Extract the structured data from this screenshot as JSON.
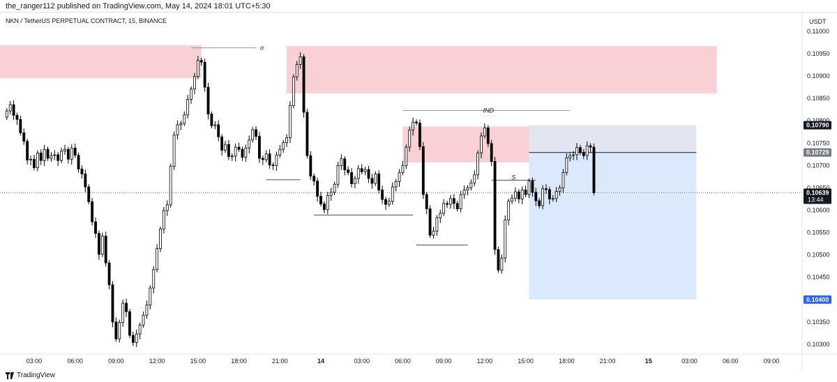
{
  "header": {
    "publisher_line": "the_ranger112 published on TradingView.com, May 14, 2024 18:01 UTC+5:30"
  },
  "symbol_line": "NKN / TetherUS PERPETUAL CONTRACT, 15, BINANCE",
  "footer": {
    "brand": "TradingView"
  },
  "colors": {
    "up_candle": "#ffffff",
    "down_candle": "#000000",
    "wick": "#000000",
    "supply_zone": "#f8c8cc",
    "target_zone": "#d4e5fb",
    "risk_zone": "#dcdff0",
    "price_badge_dark": "#131722",
    "price_badge_blue": "#2962ff",
    "price_badge_gray": "#787b86"
  },
  "chart_data": {
    "type": "candlestick",
    "price_unit": "USDT",
    "price_axis": {
      "min": 0.10278,
      "max": 0.11042,
      "ticks": [
        0.103,
        0.1035,
        0.104,
        0.1045,
        0.105,
        0.1055,
        0.106,
        0.1065,
        0.107,
        0.1075,
        0.108,
        0.1085,
        0.109,
        0.1095,
        0.11
      ],
      "tick_labels": [
        "0.10300",
        "0.10350",
        "0.10400",
        "0.10450",
        "0.10500",
        "0.10550",
        "0.10600",
        "0.10650",
        "0.10700",
        "0.10750",
        "0.10800",
        "0.10850",
        "0.10900",
        "0.10950",
        "0.11000"
      ]
    },
    "time_axis": {
      "labels": [
        "03:00",
        "06:00",
        "09:00",
        "12:00",
        "15:00",
        "18:00",
        "21:00",
        "14",
        "03:00",
        "06:00",
        "09:00",
        "12:00",
        "15:00",
        "18:00",
        "21:00",
        "15",
        "03:00",
        "06:00",
        "09:00"
      ],
      "label_bar_index": [
        8,
        20,
        32,
        44,
        56,
        68,
        80,
        92,
        104,
        116,
        128,
        140,
        152,
        164,
        176,
        188,
        200,
        212,
        224
      ],
      "bar_interval_minutes": 15,
      "bar_range": [
        -2,
        233
      ]
    },
    "candles_close": [
      0.10822,
      0.10836,
      0.10812,
      0.10803,
      0.10773,
      0.10754,
      0.10712,
      0.10714,
      0.10695,
      0.10728,
      0.10711,
      0.10736,
      0.10716,
      0.10722,
      0.10724,
      0.10711,
      0.10732,
      0.10736,
      0.10714,
      0.10739,
      0.10723,
      0.10692,
      0.10681,
      0.10652,
      0.10619,
      0.10574,
      0.10548,
      0.10501,
      0.10542,
      0.10482,
      0.10433,
      0.1035,
      0.10312,
      0.10349,
      0.10392,
      0.10373,
      0.1032,
      0.10304,
      0.10323,
      0.10343,
      0.10365,
      0.10388,
      0.10426,
      0.10467,
      0.10514,
      0.10558,
      0.10599,
      0.10612,
      0.10698,
      0.10768,
      0.10791,
      0.10794,
      0.10813,
      0.10848,
      0.10871,
      0.10899,
      0.10935,
      0.10931,
      0.10875,
      0.10815,
      0.10789,
      0.10791,
      0.10764,
      0.10734,
      0.10747,
      0.1072,
      0.10721,
      0.10741,
      0.10736,
      0.10718,
      0.10739,
      0.10757,
      0.1078,
      0.10765,
      0.10716,
      0.10713,
      0.10726,
      0.10701,
      0.107,
      0.10723,
      0.10736,
      0.10751,
      0.10762,
      0.10834,
      0.10898,
      0.10926,
      0.10943,
      0.10819,
      0.10722,
      0.10676,
      0.10665,
      0.10631,
      0.10614,
      0.10601,
      0.10633,
      0.1064,
      0.10658,
      0.107,
      0.10715,
      0.1069,
      0.10684,
      0.10659,
      0.10671,
      0.10693,
      0.10686,
      0.10691,
      0.10671,
      0.1066,
      0.10681,
      0.10645,
      0.10624,
      0.10613,
      0.1062,
      0.10652,
      0.10664,
      0.10684,
      0.107,
      0.10741,
      0.10779,
      0.10797,
      0.10795,
      0.10742,
      0.10635,
      0.10603,
      0.10544,
      0.10553,
      0.10583,
      0.10593,
      0.10615,
      0.10613,
      0.10626,
      0.10615,
      0.10603,
      0.10635,
      0.10645,
      0.1065,
      0.10661,
      0.10679,
      0.10728,
      0.10766,
      0.10784,
      0.10749,
      0.10709,
      0.10512,
      0.10466,
      0.10493,
      0.10578,
      0.1062,
      0.10627,
      0.10641,
      0.10625,
      0.10645,
      0.10635,
      0.10665,
      0.1064,
      0.10621,
      0.1061,
      0.10648,
      0.10646,
      0.10625,
      0.10626,
      0.10642,
      0.1065,
      0.10684,
      0.10717,
      0.10722,
      0.10724,
      0.1074,
      0.10729,
      0.10722,
      0.10744,
      0.10741,
      0.10639
    ],
    "annotations": [
      {
        "type": "zone",
        "name": "supply-zone-1",
        "bar_from": -2,
        "bar_to": 57,
        "price_from": 0.10895,
        "price_to": 0.10969
      },
      {
        "type": "zone",
        "name": "supply-zone-2",
        "bar_from": 82,
        "bar_to": 208,
        "price_from": 0.10861,
        "price_to": 0.10967
      },
      {
        "type": "zone",
        "name": "supply-zone-3",
        "bar_from": 116,
        "bar_to": 153,
        "price_from": 0.10707,
        "price_to": 0.10787
      },
      {
        "type": "zone",
        "name": "long-position-risk-zone",
        "bar_from": 153,
        "bar_to": 202,
        "price_from": 0.10729,
        "price_to": 0.1079
      },
      {
        "type": "zone",
        "name": "long-position-target-zone",
        "bar_from": 153,
        "bar_to": 202,
        "price_from": 0.104,
        "price_to": 0.10729
      },
      {
        "type": "hline",
        "name": "level-o",
        "bar_from": 54,
        "bar_to": 73,
        "price": 0.10963,
        "label": "o"
      },
      {
        "type": "hline",
        "name": "level-ind",
        "bar_from": 116,
        "bar_to": 165,
        "price": 0.10823,
        "label": "IND"
      },
      {
        "type": "hline",
        "name": "level-s",
        "bar_from": 142,
        "bar_to": 155,
        "price": 0.10667,
        "label": "S"
      },
      {
        "type": "hline",
        "name": "support-line-1",
        "bar_from": 76,
        "bar_to": 86,
        "price": 0.10668
      },
      {
        "type": "hline",
        "name": "support-line-2",
        "bar_from": 90,
        "bar_to": 119,
        "price": 0.10589
      },
      {
        "type": "hline",
        "name": "support-line-3",
        "bar_from": 120,
        "bar_to": 135,
        "price": 0.10522
      },
      {
        "type": "hline",
        "name": "entry-line",
        "bar_from": 153,
        "bar_to": 202,
        "price": 0.10729
      },
      {
        "type": "hline",
        "name": "last-price-line",
        "bar_from": -2,
        "bar_to": 233,
        "price": 0.10639,
        "dotted": true
      }
    ],
    "price_badges": [
      {
        "name": "stop-price-badge",
        "price": 0.1079,
        "label": "0.10790",
        "style": "dark"
      },
      {
        "name": "entry-price-badge",
        "price": 0.10729,
        "label": "0.10729",
        "style": "gray"
      },
      {
        "name": "last-price-badge",
        "price": 0.10639,
        "label": "0.10639",
        "sublabel": "13:44",
        "style": "dark"
      },
      {
        "name": "target-price-badge",
        "price": 0.104,
        "label": "0.10400",
        "style": "blue"
      }
    ]
  }
}
